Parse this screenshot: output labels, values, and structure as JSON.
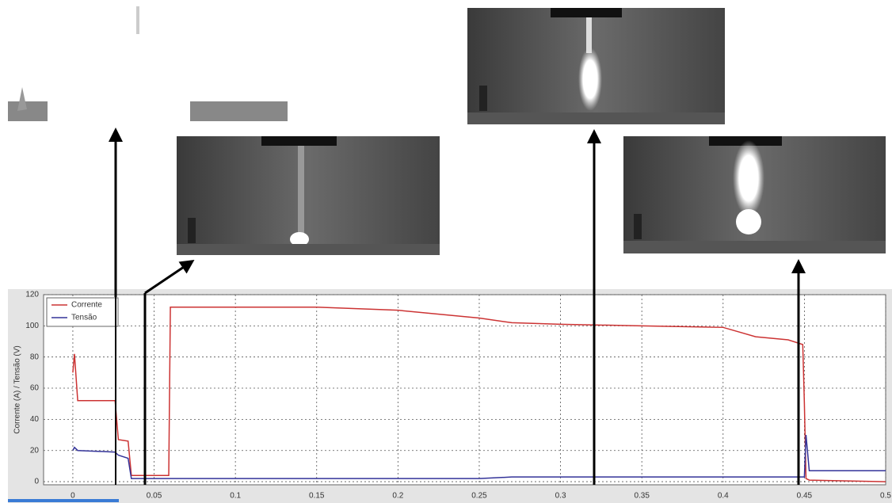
{
  "chart_data": {
    "type": "line",
    "y_label": "Corrente (A) / Tensão (V)",
    "x": [
      0,
      0.001,
      0.003,
      0.026,
      0.028,
      0.034,
      0.036,
      0.059,
      0.06,
      0.1,
      0.15,
      0.2,
      0.25,
      0.27,
      0.3,
      0.35,
      0.4,
      0.41,
      0.42,
      0.44,
      0.449,
      0.45,
      0.451,
      0.453,
      0.5
    ],
    "series": [
      {
        "name": "Corrente",
        "color": "#cc3333",
        "values": [
          70,
          82,
          52,
          52,
          27,
          26,
          4,
          4,
          112,
          112,
          112,
          110,
          105,
          102,
          101,
          100,
          99,
          96,
          93,
          91,
          88,
          50,
          2,
          1,
          0
        ]
      },
      {
        "name": "Tensão",
        "color": "#333399",
        "values": [
          20,
          22,
          20,
          19,
          17,
          15,
          2,
          2,
          2,
          2,
          2,
          2,
          2,
          3,
          3,
          3,
          3,
          3,
          3,
          3,
          3,
          3,
          30,
          7,
          7
        ]
      }
    ],
    "xlim": [
      -0.018,
      0.5
    ],
    "ylim": [
      -2,
      120
    ],
    "xticks": [
      0,
      0.05,
      0.1,
      0.15,
      0.2,
      0.25,
      0.3,
      0.35,
      0.4,
      0.45,
      0.5
    ],
    "yticks": [
      0,
      20,
      40,
      60,
      80,
      100,
      120
    ],
    "grid": true,
    "legend": "top-left"
  }
}
